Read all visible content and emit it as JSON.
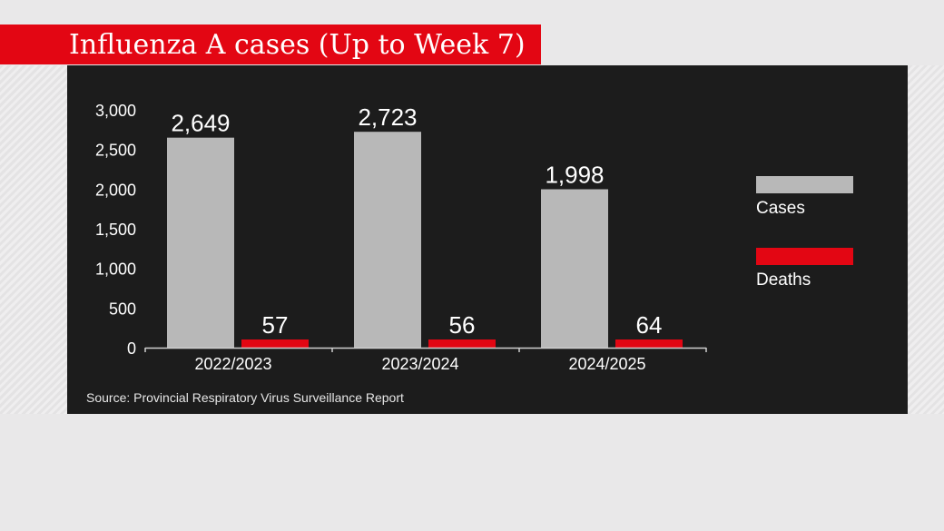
{
  "title": "Influenza A cases (Up to Week 7)",
  "source": "Source: Provincial Respiratory Virus Surveillance Report",
  "colors": {
    "title_bar": "#e30613",
    "cases": "#b8b8b8",
    "deaths": "#e30613",
    "panel": "#1c1c1c"
  },
  "legend": {
    "cases": "Cases",
    "deaths": "Deaths"
  },
  "chart_data": {
    "type": "bar",
    "categories": [
      "2022/2023",
      "2023/2024",
      "2024/2025"
    ],
    "series": [
      {
        "name": "Cases",
        "values": [
          2649,
          2723,
          1998
        ],
        "labels": [
          "2,649",
          "2,723",
          "1,998"
        ]
      },
      {
        "name": "Deaths",
        "values": [
          57,
          56,
          64
        ],
        "labels": [
          "57",
          "56",
          "64"
        ]
      }
    ],
    "ylim": [
      0,
      3000
    ],
    "yticks": [
      0,
      500,
      1000,
      1500,
      2000,
      2500,
      3000
    ],
    "ytick_labels": [
      "0",
      "500",
      "1,000",
      "1,500",
      "2,000",
      "2,500",
      "3,000"
    ],
    "xlabel": "",
    "ylabel": "",
    "legend_position": "right",
    "grid": false
  }
}
